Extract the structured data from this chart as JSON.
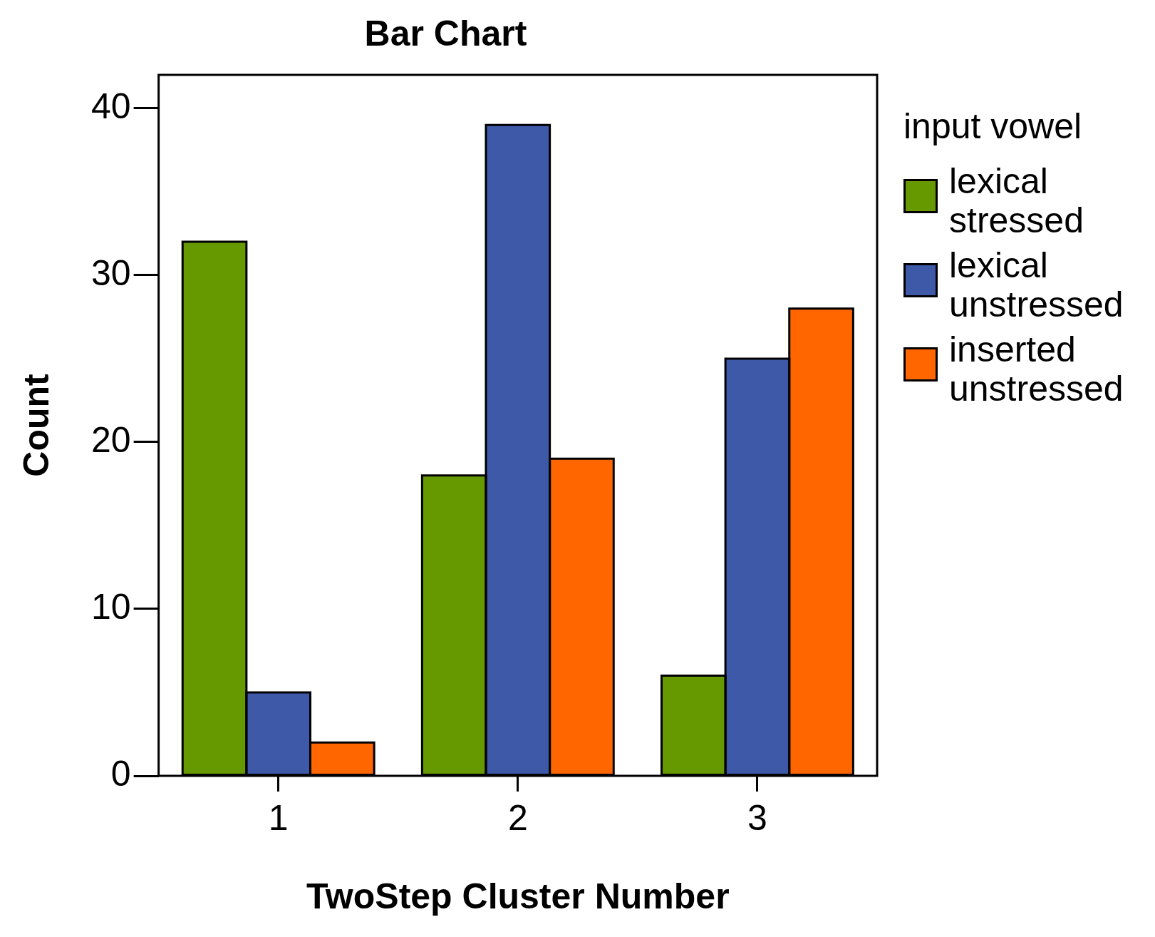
{
  "chart_data": {
    "type": "bar",
    "title": "Bar Chart",
    "xlabel": "TwoStep Cluster Number",
    "ylabel": "Count",
    "legend_title": "input vowel",
    "categories": [
      "1",
      "2",
      "3"
    ],
    "series": [
      {
        "name": "lexical stressed",
        "color": "#669900",
        "values": [
          32,
          18,
          6
        ]
      },
      {
        "name": "lexical unstressed",
        "color": "#3f59a9",
        "values": [
          5,
          39,
          25
        ]
      },
      {
        "name": "inserted unstressed",
        "color": "#ff6600",
        "values": [
          2,
          19,
          28
        ]
      }
    ],
    "ylim": [
      0,
      42
    ],
    "yticks": [
      0,
      10,
      20,
      30,
      40
    ],
    "grid": false,
    "legend": "right"
  }
}
